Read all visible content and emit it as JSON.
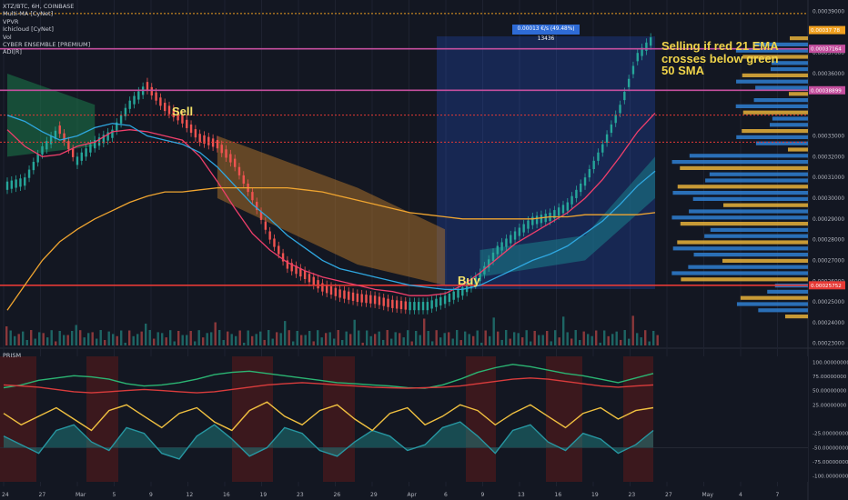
{
  "legend": {
    "symbol": "XTZ/BTC, 6H, COINBASE",
    "lines": [
      "Multi-MA [CyNet]",
      "VPVR",
      "Ichicloud [CyNet]",
      "Vol",
      "CYBER ENSEMBLE [PREMIUM]",
      "ADI[R]"
    ]
  },
  "annotation": "Selling if red 21 EMA crosses below green 50 SMA",
  "sell_label": "Sell",
  "buy_label": "Buy",
  "measure_box": "0.00013 €/s (49.48%) 13436",
  "price_tags": [
    {
      "text": "0.00037164",
      "color": "#c44f9e"
    },
    {
      "text": "0.00038899",
      "color": "#c44f9e"
    },
    {
      "text": "0.00025752",
      "color": "#e53935"
    },
    {
      "text": "0.00037 78",
      "color": "#f0a020"
    }
  ],
  "prism_title": "PRISM",
  "colors": {
    "background": "#131722",
    "ema21": "#ef3f6b",
    "sma50": "#2fa7e0",
    "ma200": "#f0a530",
    "cloud_green": "#1b7a4a",
    "cloud_orange": "#b4762a",
    "vpvr_blue": "#2f7fd1",
    "vpvr_yellow": "#e8b23a",
    "measure_box": "#2e6bd6"
  },
  "chart_data": [
    {
      "type": "line",
      "title": "XTZ/BTC, 6H, COINBASE",
      "x_tick_labels": [
        "24",
        "27",
        "Mar",
        "5",
        "9",
        "12",
        "16",
        "19",
        "23",
        "26",
        "29",
        "Apr",
        "6",
        "9",
        "13",
        "16",
        "19",
        "23",
        "27",
        "May",
        "4",
        "7"
      ],
      "y_tick_labels": [
        "0.00039000",
        "0.00038000",
        "0.00037000",
        "0.00036000",
        "0.00033000",
        "0.00032000",
        "0.00031000",
        "0.00030000",
        "0.00029000",
        "0.00028000",
        "0.00027000",
        "0.00026000",
        "0.00025000",
        "0.00024000",
        "0.00023000"
      ],
      "ylim": [
        0.000229,
        0.000392
      ],
      "series": [
        {
          "name": "price",
          "values": [
            0.000306,
            0.000308,
            0.000323,
            0.000333,
            0.000318,
            0.000326,
            0.000331,
            0.000345,
            0.000354,
            0.000344,
            0.000338,
            0.000329,
            0.000326,
            0.000317,
            0.000301,
            0.000282,
            0.000268,
            0.000263,
            0.000257,
            0.000254,
            0.000252,
            0.000251,
            0.000249,
            0.000248,
            0.000248,
            0.000251,
            0.000255,
            0.000262,
            0.000275,
            0.000282,
            0.000289,
            0.000291,
            0.000296,
            0.000308,
            0.000324,
            0.000343,
            0.000368,
            0.000378
          ]
        },
        {
          "name": "21 EMA",
          "values": [
            0.000333,
            0.000325,
            0.00032,
            0.000321,
            0.000325,
            0.000327,
            0.000332,
            0.000333,
            0.000332,
            0.00033,
            0.000328,
            0.00032,
            0.000308,
            0.000295,
            0.000283,
            0.000275,
            0.000269,
            0.000265,
            0.000262,
            0.00026,
            0.000258,
            0.000256,
            0.000255,
            0.000253,
            0.000253,
            0.000254,
            0.000258,
            0.000264,
            0.000271,
            0.000278,
            0.000283,
            0.000288,
            0.000293,
            0.0003,
            0.000309,
            0.00032,
            0.000332,
            0.000341
          ]
        },
        {
          "name": "50 SMA",
          "values": [
            0.00034,
            0.000337,
            0.000332,
            0.000328,
            0.00033,
            0.000334,
            0.000336,
            0.000335,
            0.00033,
            0.000328,
            0.000326,
            0.000322,
            0.000315,
            0.000306,
            0.000297,
            0.00029,
            0.000282,
            0.000276,
            0.00027,
            0.000266,
            0.000264,
            0.000262,
            0.00026,
            0.000258,
            0.000257,
            0.000256,
            0.000256,
            0.000258,
            0.000262,
            0.000266,
            0.00027,
            0.000273,
            0.000277,
            0.000283,
            0.000289,
            0.000297,
            0.000306,
            0.000313
          ]
        },
        {
          "name": "200 MA",
          "values": [
            0.000246,
            0.000258,
            0.00027,
            0.000279,
            0.000285,
            0.00029,
            0.000294,
            0.000298,
            0.000301,
            0.000303,
            0.000303,
            0.000304,
            0.000305,
            0.000305,
            0.000305,
            0.000305,
            0.000305,
            0.000304,
            0.000303,
            0.000301,
            0.000299,
            0.000297,
            0.000295,
            0.000293,
            0.000292,
            0.000291,
            0.00029,
            0.00029,
            0.00029,
            0.00029,
            0.00029,
            0.000291,
            0.000291,
            0.000292,
            0.000292,
            0.000292,
            0.000292,
            0.000293
          ]
        }
      ],
      "horizontal_levels": [
        {
          "value": 0.000389,
          "color": "#f0a020",
          "style": "dotted"
        },
        {
          "value": 0.000372,
          "color": "#c44f9e",
          "style": "solid"
        },
        {
          "value": 0.000352,
          "color": "#c44f9e",
          "style": "solid"
        },
        {
          "value": 0.00034,
          "color": "#e53935",
          "style": "dotted"
        },
        {
          "value": 0.000327,
          "color": "#e53935",
          "style": "dotted"
        },
        {
          "value": 0.000258,
          "color": "#e53935",
          "style": "solid"
        }
      ]
    },
    {
      "type": "line",
      "title": "PRISM",
      "y_tick_labels": [
        "100.00000000",
        "75.00000000",
        "50.00000000",
        "25.00000000",
        "-25.00000000",
        "-50.00000000",
        "-75.00000000",
        "-100.00000000"
      ],
      "ylim": [
        -110,
        110
      ],
      "series": [
        {
          "name": "green",
          "values": [
            55,
            60,
            68,
            72,
            76,
            74,
            70,
            62,
            58,
            60,
            64,
            70,
            78,
            82,
            84,
            80,
            76,
            72,
            68,
            64,
            62,
            60,
            58,
            55,
            54,
            60,
            70,
            82,
            90,
            96,
            92,
            86,
            80,
            76,
            70,
            64,
            72,
            80
          ]
        },
        {
          "name": "red",
          "values": [
            60,
            58,
            56,
            52,
            48,
            46,
            48,
            50,
            52,
            50,
            48,
            46,
            48,
            52,
            56,
            60,
            62,
            64,
            62,
            60,
            58,
            56,
            55,
            54,
            55,
            56,
            58,
            62,
            66,
            70,
            72,
            70,
            66,
            62,
            58,
            56,
            58,
            60
          ]
        },
        {
          "name": "teal",
          "values": [
            -30,
            -45,
            -60,
            -20,
            -10,
            -40,
            -55,
            -15,
            -25,
            -60,
            -70,
            -30,
            -10,
            -35,
            -65,
            -50,
            -15,
            -25,
            -55,
            -65,
            -40,
            -20,
            -30,
            -55,
            -45,
            -15,
            -5,
            -30,
            -60,
            -20,
            -10,
            -40,
            -55,
            -25,
            -35,
            -60,
            -45,
            -20
          ]
        },
        {
          "name": "yellow",
          "values": [
            10,
            -10,
            5,
            20,
            0,
            -20,
            15,
            25,
            5,
            -15,
            10,
            20,
            -5,
            -20,
            15,
            30,
            5,
            -10,
            15,
            25,
            0,
            -20,
            10,
            20,
            -10,
            5,
            25,
            15,
            -10,
            10,
            25,
            5,
            -15,
            10,
            20,
            0,
            15,
            20
          ]
        }
      ]
    }
  ],
  "x_axis_labels": [
    "24",
    "27",
    "Mar",
    "5",
    "9",
    "12",
    "16",
    "19",
    "23",
    "26",
    "29",
    "Apr",
    "6",
    "9",
    "13",
    "16",
    "19",
    "23",
    "27",
    "May",
    "4",
    "7"
  ],
  "y_axis_labels": [
    "0.00039000",
    "0.00038000",
    "0.00037000",
    "0.00036000",
    "0.00033000",
    "0.00032000",
    "0.00031000",
    "0.00030000",
    "0.00029000",
    "0.00028000",
    "0.00027000",
    "0.00026000",
    "0.00025000",
    "0.00024000",
    "0.00023000"
  ],
  "prism_y_axis_labels": [
    "100.00000000",
    "75.00000000",
    "50.00000000",
    "25.00000000",
    "-25.00000000",
    "-50.00000000",
    "-75.00000000",
    "-100.00000000"
  ]
}
